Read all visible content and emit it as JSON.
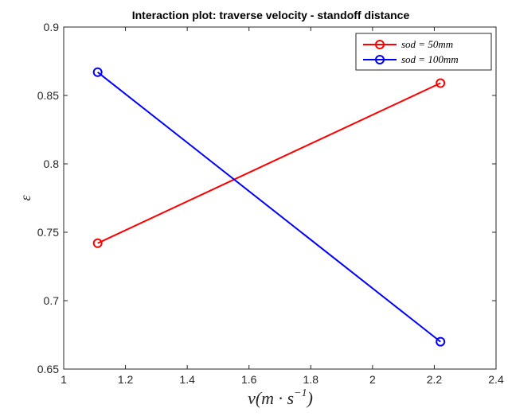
{
  "chart_data": {
    "type": "line",
    "title": "Interaction plot: traverse velocity - standoff distance",
    "xlabel": {
      "base": "v(m · s",
      "sup": "−1",
      "close": ")"
    },
    "ylabel": "ε",
    "xlim": [
      1,
      2.4
    ],
    "ylim": [
      0.65,
      0.9
    ],
    "xticks": [
      1,
      1.2,
      1.4,
      1.6,
      1.8,
      2,
      2.2,
      2.4
    ],
    "xtick_labels": [
      "1",
      "1.2",
      "1.4",
      "1.6",
      "1.8",
      "2",
      "2.2",
      "2.4"
    ],
    "yticks": [
      0.65,
      0.7,
      0.75,
      0.8,
      0.85,
      0.9
    ],
    "ytick_labels": [
      "0.65",
      "0.7",
      "0.75",
      "0.8",
      "0.85",
      "0.9"
    ],
    "grid": false,
    "legend_position": "top-right",
    "series": [
      {
        "name": "sod = 50mm",
        "color": "#ff0000",
        "marker": "circle",
        "x": [
          1.11,
          2.22
        ],
        "y": [
          0.742,
          0.859
        ]
      },
      {
        "name": "sod = 100mm",
        "color": "#0000ff",
        "marker": "circle",
        "x": [
          1.11,
          2.22
        ],
        "y": [
          0.867,
          0.67
        ]
      }
    ]
  }
}
